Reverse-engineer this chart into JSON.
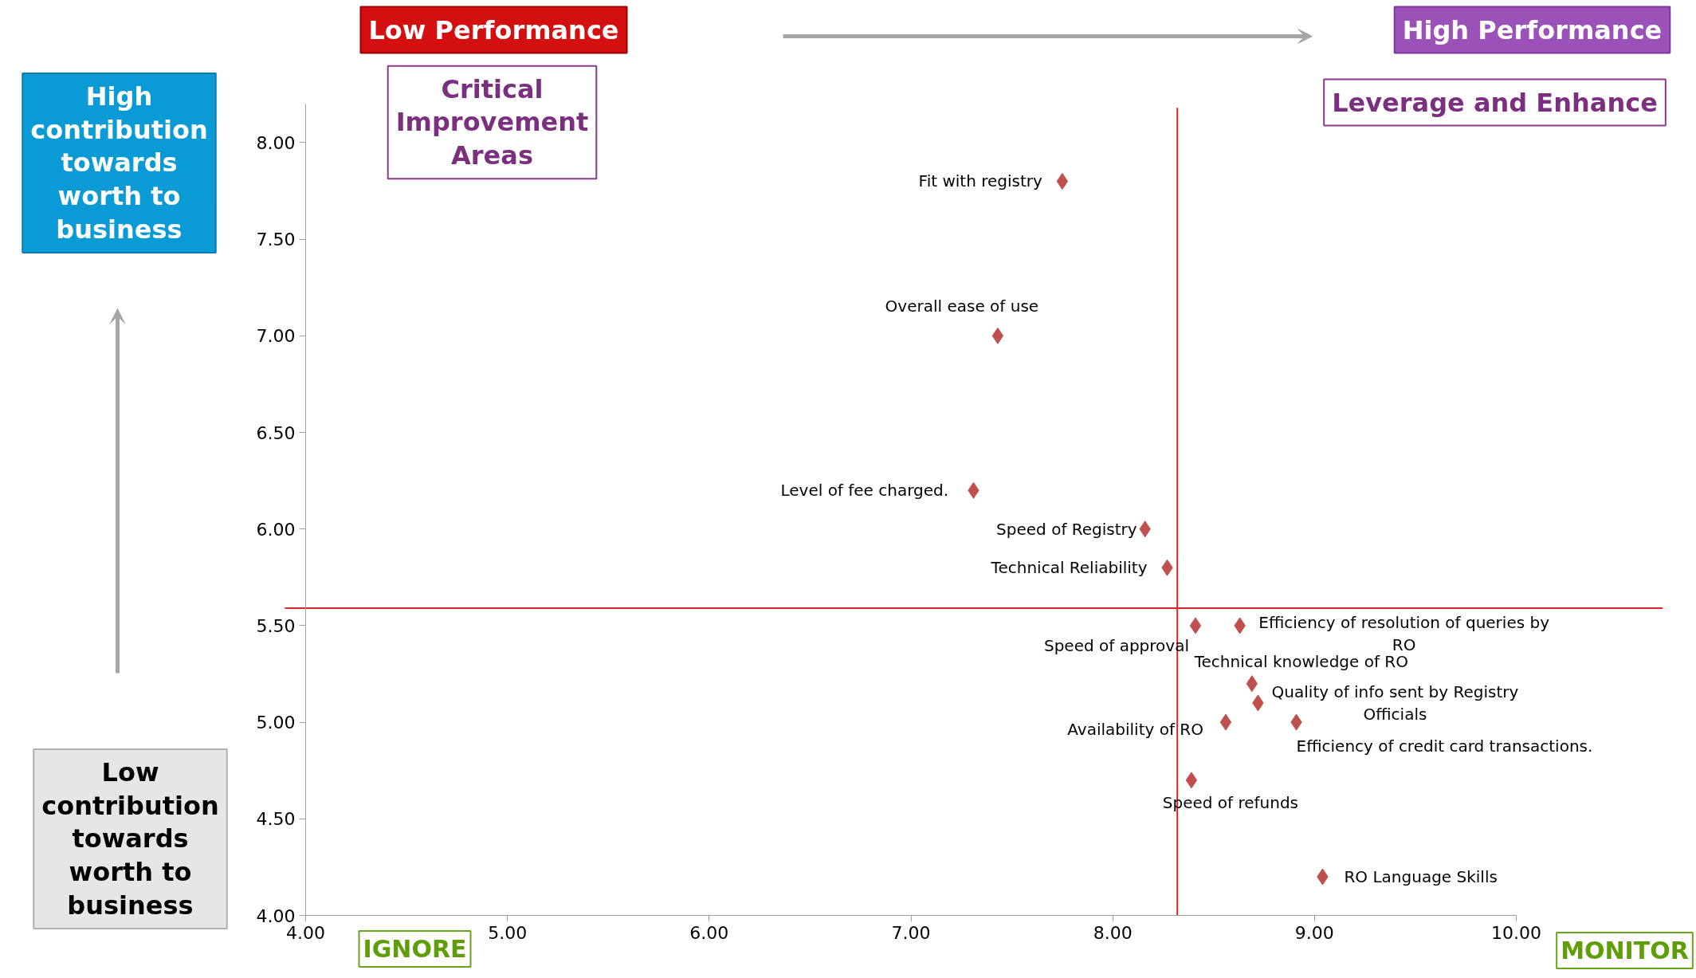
{
  "chart_data": {
    "type": "scatter",
    "color": "#c0504d",
    "marker": "diamond",
    "grid": false,
    "x": [
      7.75,
      7.43,
      7.31,
      8.16,
      8.27,
      8.41,
      8.63,
      8.69,
      8.72,
      8.56,
      8.91,
      8.39,
      9.04
    ],
    "values": [
      7.8,
      7.0,
      6.2,
      6.0,
      5.8,
      5.5,
      5.5,
      5.2,
      5.1,
      5.0,
      5.0,
      4.7,
      4.2
    ],
    "xlim": [
      4,
      10
    ],
    "ylim": [
      4,
      8.2
    ],
    "xticks": [
      {
        "value": 4,
        "label": "4.00"
      },
      {
        "value": 5,
        "label": "5.00"
      },
      {
        "value": 6,
        "label": "6.00"
      },
      {
        "value": 7,
        "label": "7.00"
      },
      {
        "value": 8,
        "label": "8.00"
      },
      {
        "value": 9,
        "label": "9.00"
      },
      {
        "value": 10,
        "label": "10.00"
      }
    ],
    "yticks": [
      {
        "value": 4,
        "label": "4.00"
      },
      {
        "value": 4.5,
        "label": "4.50"
      },
      {
        "value": 5,
        "label": "5.00"
      },
      {
        "value": 5.5,
        "label": "5.50"
      },
      {
        "value": 6,
        "label": "6.00"
      },
      {
        "value": 6.5,
        "label": "6.50"
      },
      {
        "value": 7,
        "label": "7.00"
      },
      {
        "value": 7.5,
        "label": "7.50"
      },
      {
        "value": 8,
        "label": "8.00"
      }
    ],
    "ref_lines": [
      {
        "axis": "x",
        "value": 8.32,
        "color": "#d9262b"
      },
      {
        "axis": "y",
        "value": 5.59,
        "color": "#d9262b"
      }
    ],
    "annotations": [
      {
        "text": "Fit with registry",
        "x": 7.75,
        "y": 7.8
      },
      {
        "text": "Overall ease of use",
        "x": 7.43,
        "y": 7.0
      },
      {
        "text": "Level of  fee charged.",
        "x": 7.31,
        "y": 6.2
      },
      {
        "text": "Speed of Registry",
        "x": 8.16,
        "y": 6.0
      },
      {
        "text": "Technical Reliability",
        "x": 8.27,
        "y": 5.8
      },
      {
        "text": "Speed of approval",
        "x": 8.41,
        "y": 5.5
      },
      {
        "text": "Efficiency of resolution of queries by\nRO",
        "x": 8.63,
        "y": 5.5
      },
      {
        "text": "Technical knowledge of RO",
        "x": 8.69,
        "y": 5.2
      },
      {
        "text": "Quality of info sent by Registry\nOfficials",
        "x": 8.72,
        "y": 5.1
      },
      {
        "text": "Availability of RO",
        "x": 8.56,
        "y": 5.0
      },
      {
        "text": "Efficiency of credit card transactions.",
        "x": 8.91,
        "y": 5.0
      },
      {
        "text": "Speed of refunds",
        "x": 8.39,
        "y": 4.7
      },
      {
        "text": "RO Language Skills",
        "x": 9.04,
        "y": 4.2
      },
      "Low Performance",
      "High Performance",
      "Critical\nImprovement\nAreas",
      "Leverage and Enhance",
      "High\ncontribution\ntowards\nworth to\nbusiness",
      "Low\ncontribution\ntowards\nworth to\nbusiness",
      "IGNORE",
      "MONITOR"
    ]
  }
}
